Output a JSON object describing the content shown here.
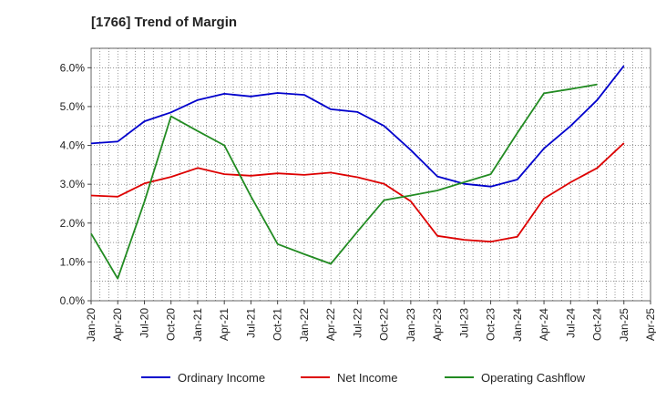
{
  "chart_data": {
    "type": "line",
    "title": "[1766]  Trend of Margin",
    "xlabel": "",
    "ylabel": "",
    "ylim": [
      0,
      6.5
    ],
    "y_ticks": [
      0,
      1,
      2,
      3,
      4,
      5,
      6
    ],
    "y_tick_format": "percent_1dp",
    "x_tick_labels": [
      "Jan-20",
      "Apr-20",
      "Jul-20",
      "Oct-20",
      "Jan-21",
      "Apr-21",
      "Jul-21",
      "Oct-21",
      "Jan-22",
      "Apr-22",
      "Jul-22",
      "Oct-22",
      "Jan-23",
      "Apr-23",
      "Jul-23",
      "Oct-23",
      "Jan-24",
      "Apr-24",
      "Jul-24",
      "Oct-24",
      "Jan-25",
      "Apr-25"
    ],
    "grid": true,
    "legend_position": "bottom",
    "series": [
      {
        "name": "Ordinary Income",
        "color": "#0000cc",
        "values": [
          4.05,
          4.1,
          4.62,
          4.85,
          5.17,
          5.33,
          5.26,
          5.35,
          5.3,
          4.93,
          4.86,
          4.5,
          3.88,
          3.2,
          3.01,
          2.94,
          3.12,
          3.92,
          4.5,
          5.17,
          6.05,
          null
        ]
      },
      {
        "name": "Net Income",
        "color": "#dd0000",
        "values": [
          2.71,
          2.68,
          3.02,
          3.19,
          3.42,
          3.26,
          3.22,
          3.28,
          3.24,
          3.3,
          3.18,
          3.01,
          2.56,
          1.67,
          1.57,
          1.52,
          1.65,
          2.63,
          3.05,
          3.42,
          4.06,
          null
        ]
      },
      {
        "name": "Operating Cashflow",
        "color": "#228b22",
        "values": [
          1.73,
          0.57,
          2.55,
          4.75,
          4.37,
          4.0,
          2.69,
          1.46,
          1.2,
          0.95,
          1.78,
          2.59,
          2.71,
          2.84,
          3.05,
          3.26,
          4.32,
          5.34,
          5.45,
          5.57,
          null,
          null
        ]
      }
    ]
  }
}
